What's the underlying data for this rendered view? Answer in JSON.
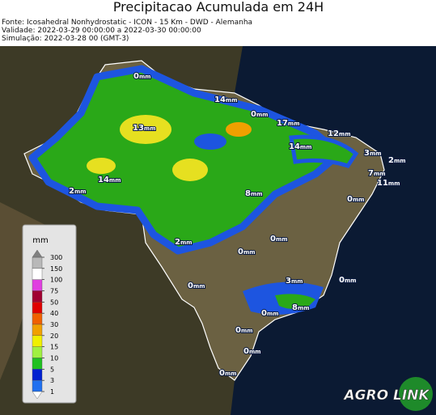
{
  "header": {
    "title": "Precipitacao Acumulada em 24H",
    "lines": [
      "Fonte: Icosahedral Nonhydrostatic - ICON - 15 Km - DWD - Alemanha",
      "Validade: 2022-03-29 00:00:00 a 2022-03-30 00:00:00",
      "Simulação: 2022-03-28 00 (GMT-3)"
    ]
  },
  "legend": {
    "unit": "mm",
    "levels": [
      300,
      150,
      100,
      75,
      50,
      40,
      30,
      20,
      15,
      10,
      5,
      3,
      1
    ],
    "colors": [
      "#b8b8b8",
      "#ffffff",
      "#e040e0",
      "#a00030",
      "#e00000",
      "#f06000",
      "#f0a000",
      "#f0f000",
      "#a0f040",
      "#20c020",
      "#0020d0",
      "#2070f0"
    ],
    "over_color": "#808080",
    "under_color": "#ffffff"
  },
  "map_labels": [
    "0mm",
    "14mm",
    "0mm",
    "17mm",
    "12mm",
    "13mm",
    "14mm",
    "3mm",
    "2mm",
    "7mm",
    "11mm",
    "14mm",
    "2mm",
    "8mm",
    "0mm",
    "0mm",
    "2mm",
    "0mm",
    "0mm",
    "3mm",
    "0mm",
    "8mm",
    "0mm",
    "0mm",
    "0mm",
    "0mm"
  ],
  "logo": {
    "text": "AGRO LINK"
  }
}
